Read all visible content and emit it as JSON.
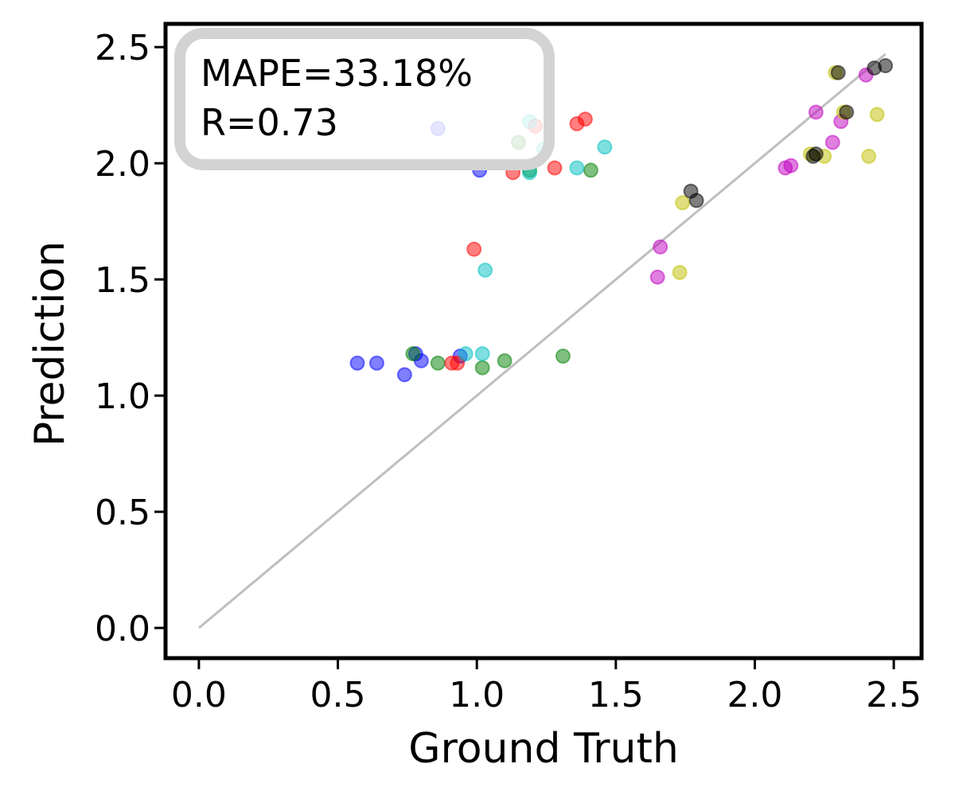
{
  "chart_data": {
    "type": "scatter",
    "title": "",
    "xlabel": "Ground Truth",
    "ylabel": "Prediction",
    "xlim": [
      -0.12,
      2.6
    ],
    "ylim": [
      -0.13,
      2.6
    ],
    "xticks": [
      0.0,
      0.5,
      1.0,
      1.5,
      2.0,
      2.5
    ],
    "yticks": [
      0.0,
      0.5,
      1.0,
      1.5,
      2.0,
      2.5
    ],
    "xtick_labels": [
      "0.0",
      "0.5",
      "1.0",
      "1.5",
      "2.0",
      "2.5"
    ],
    "ytick_labels": [
      "0.0",
      "0.5",
      "1.0",
      "1.5",
      "2.0",
      "2.5"
    ],
    "grid": false,
    "reference_line": {
      "x": [
        0.0,
        2.47
      ],
      "y": [
        0.0,
        2.47
      ],
      "color": "#bfbfbf"
    },
    "annotation": {
      "lines": [
        "MAPE=33.18%",
        "R=0.73"
      ],
      "placement": "top-left"
    },
    "series": [
      {
        "name": "blue",
        "color": "#0000ff",
        "points": [
          [
            0.57,
            1.14
          ],
          [
            0.64,
            1.14
          ],
          [
            0.74,
            1.09
          ],
          [
            0.78,
            1.18
          ],
          [
            0.8,
            1.15
          ],
          [
            0.94,
            1.17
          ],
          [
            1.01,
            1.97
          ],
          [
            0.86,
            2.15
          ]
        ]
      },
      {
        "name": "green",
        "color": "#008000",
        "points": [
          [
            0.77,
            1.18
          ],
          [
            0.86,
            1.14
          ],
          [
            1.02,
            1.12
          ],
          [
            1.1,
            1.15
          ],
          [
            1.31,
            1.17
          ],
          [
            1.19,
            1.97
          ],
          [
            1.41,
            1.97
          ],
          [
            1.15,
            2.09
          ]
        ]
      },
      {
        "name": "red",
        "color": "#ff0000",
        "points": [
          [
            0.91,
            1.14
          ],
          [
            0.93,
            1.14
          ],
          [
            0.99,
            1.63
          ],
          [
            1.13,
            1.96
          ],
          [
            1.28,
            1.98
          ],
          [
            1.36,
            2.17
          ],
          [
            1.39,
            2.19
          ],
          [
            1.21,
            2.16
          ]
        ]
      },
      {
        "name": "cyan",
        "color": "#00bfbf",
        "points": [
          [
            0.96,
            1.18
          ],
          [
            1.02,
            1.18
          ],
          [
            1.03,
            1.54
          ],
          [
            1.19,
            1.96
          ],
          [
            1.36,
            1.98
          ],
          [
            1.46,
            2.07
          ],
          [
            1.19,
            2.18
          ],
          [
            1.24,
            2.06
          ]
        ]
      },
      {
        "name": "magenta",
        "color": "#bf00bf",
        "points": [
          [
            1.65,
            1.51
          ],
          [
            1.66,
            1.64
          ],
          [
            2.11,
            1.98
          ],
          [
            2.13,
            1.99
          ],
          [
            2.22,
            2.22
          ],
          [
            2.28,
            2.09
          ],
          [
            2.31,
            2.18
          ],
          [
            2.4,
            2.38
          ]
        ]
      },
      {
        "name": "olive",
        "color": "#bfbf00",
        "points": [
          [
            1.73,
            1.53
          ],
          [
            1.74,
            1.83
          ],
          [
            2.2,
            2.04
          ],
          [
            2.25,
            2.03
          ],
          [
            2.29,
            2.39
          ],
          [
            2.32,
            2.22
          ],
          [
            2.41,
            2.03
          ],
          [
            2.44,
            2.21
          ]
        ]
      },
      {
        "name": "black",
        "color": "#000000",
        "points": [
          [
            1.77,
            1.88
          ],
          [
            1.79,
            1.84
          ],
          [
            2.21,
            2.03
          ],
          [
            2.22,
            2.04
          ],
          [
            2.3,
            2.39
          ],
          [
            2.33,
            2.22
          ],
          [
            2.43,
            2.41
          ],
          [
            2.47,
            2.42
          ]
        ]
      }
    ]
  }
}
